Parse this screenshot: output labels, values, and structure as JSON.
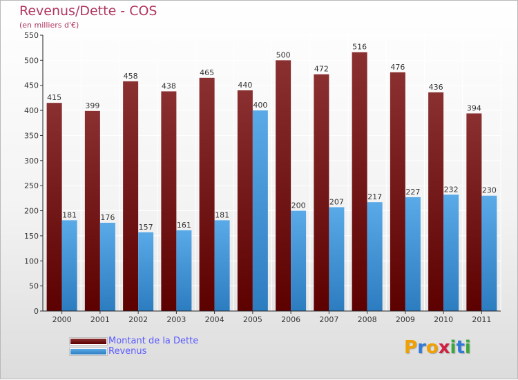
{
  "title": "Revenus/Dette - COS",
  "subtitle": "(en milliers d'€)",
  "logo": {
    "letters": [
      "P",
      "r",
      "o",
      "x",
      "i",
      "t",
      "i"
    ],
    "colors": [
      "#f0a000",
      "#2f7ad8",
      "#f0a000",
      "#d02040",
      "#3aa83a",
      "#2f7ad8",
      "#3aa83a"
    ]
  },
  "colors": {
    "debt_top": "#8a3030",
    "debt_bottom": "#5c0000",
    "revenue_top": "#5aaae8",
    "revenue_bottom": "#2c7cc0",
    "title": "#b03560",
    "legend_text": "#5a5aff"
  },
  "chart_data": {
    "type": "bar",
    "title": "Revenus/Dette - COS",
    "subtitle": "(en milliers d'€)",
    "categories": [
      "2000",
      "2001",
      "2002",
      "2003",
      "2004",
      "2005",
      "2006",
      "2007",
      "2008",
      "2009",
      "2010",
      "2011"
    ],
    "series": [
      {
        "name": "Montant de la Dette",
        "values": [
          415,
          399,
          458,
          438,
          465,
          440,
          500,
          472,
          516,
          476,
          436,
          394
        ]
      },
      {
        "name": "Revenus",
        "values": [
          181,
          176,
          157,
          161,
          181,
          400,
          200,
          207,
          217,
          227,
          232,
          230
        ]
      }
    ],
    "ylim": [
      0,
      550
    ],
    "yticks": [
      0,
      50,
      100,
      150,
      200,
      250,
      300,
      350,
      400,
      450,
      500,
      550
    ],
    "grid": true,
    "legend": "bottom-left"
  }
}
